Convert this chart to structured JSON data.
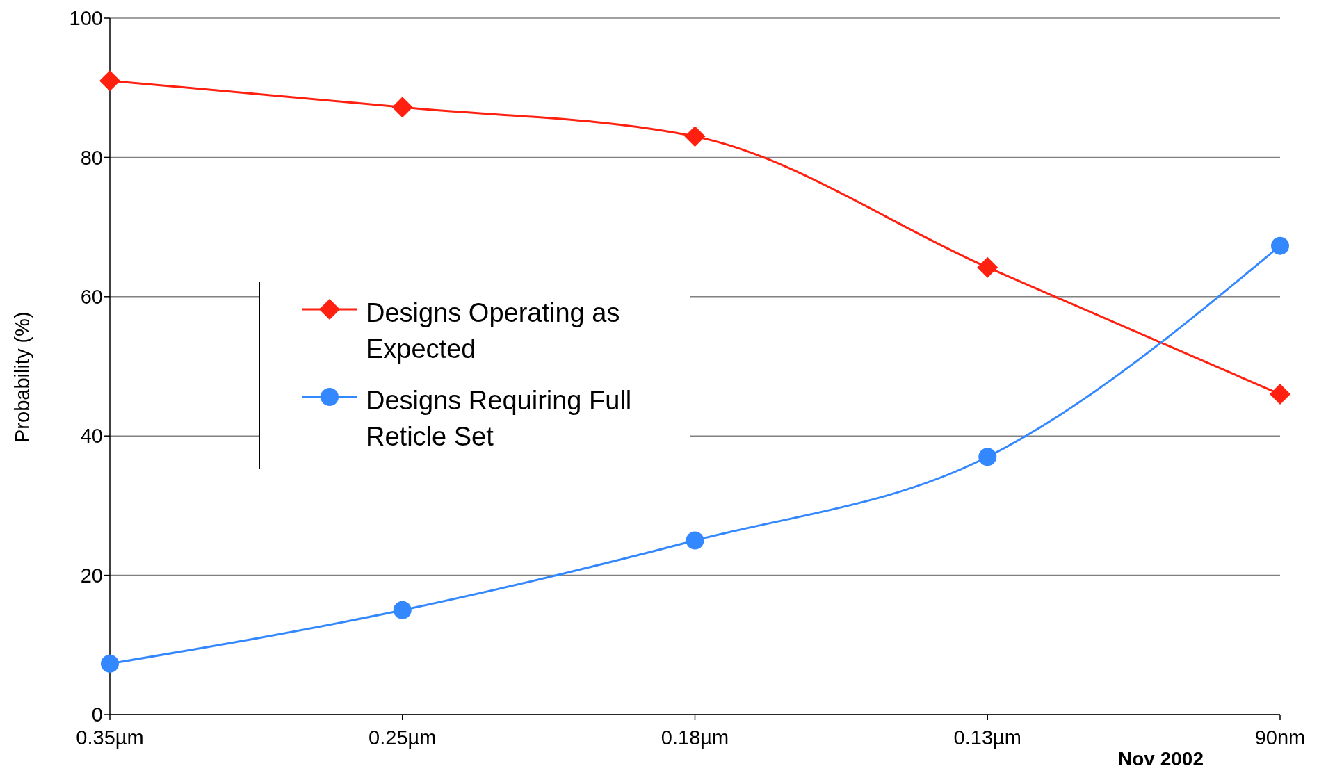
{
  "chart_data": {
    "type": "line",
    "ylabel": "Probability (%)",
    "categories": [
      "0.35µm",
      "0.25µm",
      "0.18µm",
      "0.13µm",
      "90nm"
    ],
    "series": [
      {
        "name": "Designs Operating as Expected",
        "color": "#ff2010",
        "marker": "diamond",
        "values": [
          91,
          87.2,
          83,
          64.2,
          46
        ]
      },
      {
        "name": "Designs Requiring Full Reticle Set",
        "color": "#3388ff",
        "marker": "circle",
        "values": [
          7.3,
          15,
          25,
          37,
          67.3
        ]
      }
    ],
    "ylim": [
      0,
      100
    ],
    "yticks": [
      0,
      20,
      40,
      60,
      80,
      100
    ],
    "grid": "y",
    "legend": "center",
    "annotations": [
      "Nov 2002"
    ]
  }
}
